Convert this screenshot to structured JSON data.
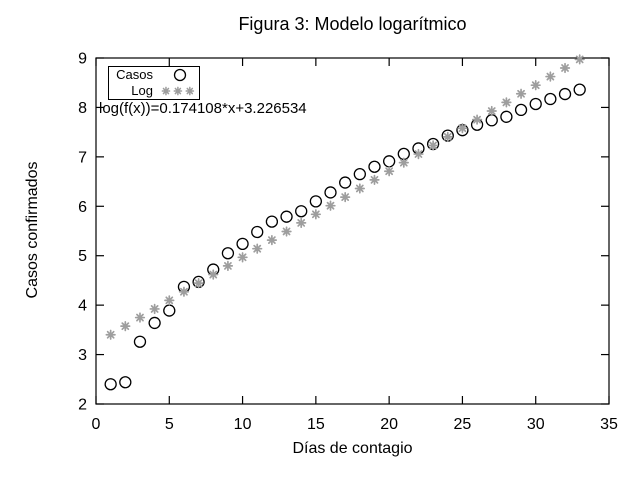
{
  "chart_data": {
    "type": "scatter",
    "title": "Figura 3: Modelo logarítmico",
    "xlabel": "Días de contagio",
    "ylabel": "Casos confirmados",
    "annotation": "log(f(x))=0.174108*x+3.226534",
    "xlim": [
      0,
      35
    ],
    "ylim": [
      2,
      9
    ],
    "xticks": [
      0,
      5,
      10,
      15,
      20,
      25,
      30,
      35
    ],
    "yticks": [
      2,
      3,
      4,
      5,
      6,
      7,
      8,
      9
    ],
    "grid": false,
    "legend_position": "top-left-inside",
    "background_color": "#ffffff",
    "axis_color": "#000000",
    "x": [
      1,
      2,
      3,
      4,
      5,
      6,
      7,
      8,
      9,
      10,
      11,
      12,
      13,
      14,
      15,
      16,
      17,
      18,
      19,
      20,
      21,
      22,
      23,
      24,
      25,
      26,
      27,
      28,
      29,
      30,
      31,
      32,
      33
    ],
    "series": [
      {
        "name": "Casos",
        "marker": "open-circle",
        "color": "#000000",
        "values": [
          2.4,
          2.44,
          3.26,
          3.64,
          3.89,
          4.37,
          4.47,
          4.72,
          5.05,
          5.24,
          5.48,
          5.69,
          5.79,
          5.9,
          6.1,
          6.28,
          6.48,
          6.65,
          6.8,
          6.91,
          7.06,
          7.17,
          7.26,
          7.43,
          7.54,
          7.65,
          7.74,
          7.81,
          7.95,
          8.07,
          8.17,
          8.27,
          8.36
        ]
      },
      {
        "name": "Log",
        "marker": "asterisk",
        "color": "#9e9e9e",
        "fit_formula": "0.174108*x+3.226534",
        "values": [
          3.401,
          3.575,
          3.749,
          3.923,
          4.097,
          4.271,
          4.445,
          4.619,
          4.794,
          4.968,
          5.142,
          5.316,
          5.49,
          5.664,
          5.838,
          6.012,
          6.186,
          6.36,
          6.535,
          6.709,
          6.883,
          7.057,
          7.231,
          7.405,
          7.579,
          7.753,
          7.927,
          8.102,
          8.276,
          8.45,
          8.624,
          8.798,
          8.972
        ]
      }
    ],
    "legend": {
      "entries": [
        {
          "label": "Casos",
          "marker": "open-circle",
          "color": "#000000"
        },
        {
          "label": "Log",
          "marker": "asterisk",
          "color": "#9e9e9e"
        }
      ]
    }
  }
}
